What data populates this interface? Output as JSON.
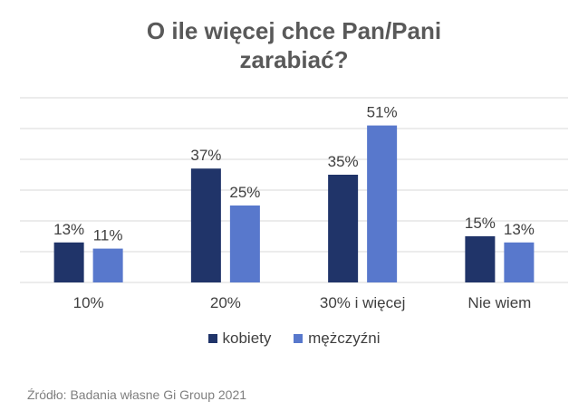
{
  "chart_data": {
    "type": "bar",
    "title": "O ile więcej chce Pan/Pani\nzarabiać?",
    "categories": [
      "10%",
      "20%",
      "30% i więcej",
      "Nie wiem"
    ],
    "series": [
      {
        "name": "kobiety",
        "values": [
          13,
          37,
          35,
          15
        ],
        "color": "#203469"
      },
      {
        "name": "mężczyźni",
        "values": [
          11,
          25,
          51,
          13
        ],
        "color": "#5878cc"
      }
    ],
    "data_labels": [
      [
        "13%",
        "37%",
        "35%",
        "15%"
      ],
      [
        "11%",
        "25%",
        "51%",
        "13%"
      ]
    ],
    "ylim": [
      0,
      60
    ],
    "grid": true,
    "legend": "bottom",
    "xlabel": "",
    "ylabel": ""
  },
  "source": "Źródło: Badania własne Gi Group 2021"
}
